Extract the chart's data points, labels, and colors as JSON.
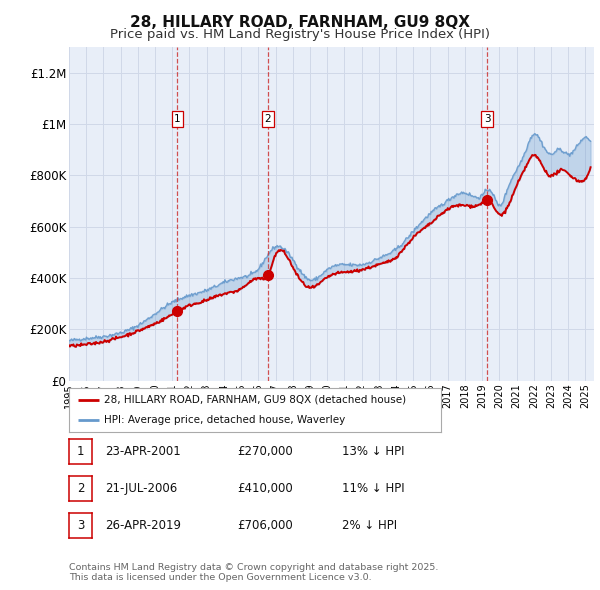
{
  "title": "28, HILLARY ROAD, FARNHAM, GU9 8QX",
  "subtitle": "Price paid vs. HM Land Registry's House Price Index (HPI)",
  "title_fontsize": 11,
  "subtitle_fontsize": 9.5,
  "background_color": "#ffffff",
  "plot_bg_color": "#e8eef8",
  "grid_color": "#d0d8e8",
  "ylim": [
    0,
    1300000
  ],
  "yticks": [
    0,
    200000,
    400000,
    600000,
    800000,
    1000000,
    1200000
  ],
  "ytick_labels": [
    "£0",
    "£200K",
    "£400K",
    "£600K",
    "£800K",
    "£1M",
    "£1.2M"
  ],
  "legend_entries": [
    "28, HILLARY ROAD, FARNHAM, GU9 8QX (detached house)",
    "HPI: Average price, detached house, Waverley"
  ],
  "legend_colors": [
    "#cc0000",
    "#6699cc"
  ],
  "transactions": [
    {
      "num": 1,
      "date": "23-APR-2001",
      "price": 270000,
      "hpi_diff": "13% ↓ HPI",
      "x_year": 2001.3
    },
    {
      "num": 2,
      "date": "21-JUL-2006",
      "price": 410000,
      "hpi_diff": "11% ↓ HPI",
      "x_year": 2006.55
    },
    {
      "num": 3,
      "date": "26-APR-2019",
      "price": 706000,
      "hpi_diff": "2% ↓ HPI",
      "x_year": 2019.3
    }
  ],
  "vline_color": "#cc3333",
  "vline_style": "--",
  "marker_color": "#cc0000",
  "marker_size": 7,
  "transaction_marker_values": [
    270000,
    410000,
    706000
  ],
  "table_rows": [
    {
      "num": "1",
      "date": "23-APR-2001",
      "price": "£270,000",
      "hpi": "13% ↓ HPI"
    },
    {
      "num": "2",
      "date": "21-JUL-2006",
      "price": "£410,000",
      "hpi": "11% ↓ HPI"
    },
    {
      "num": "3",
      "date": "26-APR-2019",
      "price": "£706,000",
      "hpi": "2% ↓ HPI"
    }
  ],
  "footnote_line1": "Contains HM Land Registry data © Crown copyright and database right 2025.",
  "footnote_line2": "This data is licensed under the Open Government Licence v3.0.",
  "xlim_start": 1995,
  "xlim_end": 2025.5,
  "hpi_key_x": [
    1995,
    1997,
    1999,
    2001,
    2002,
    2003,
    2004,
    2005,
    2006,
    2007,
    2007.5,
    2008,
    2009,
    2010,
    2011,
    2012,
    2013,
    2014,
    2015,
    2016,
    2017,
    2018,
    2019,
    2019.5,
    2020,
    2020.5,
    2021,
    2021.5,
    2022,
    2022.5,
    2023,
    2023.5,
    2024,
    2024.5,
    2025.3
  ],
  "hpi_key_y": [
    155000,
    172000,
    215000,
    305000,
    332000,
    352000,
    382000,
    402000,
    435000,
    522000,
    512000,
    472000,
    392000,
    432000,
    452000,
    452000,
    477000,
    512000,
    582000,
    652000,
    702000,
    732000,
    722000,
    742000,
    682000,
    752000,
    822000,
    892000,
    962000,
    922000,
    882000,
    902000,
    882000,
    912000,
    932000
  ],
  "price_key_x": [
    1995,
    1997,
    1999,
    2001,
    2001.3,
    2002,
    2003,
    2004,
    2005,
    2006,
    2006.55,
    2007,
    2008,
    2009,
    2010,
    2011,
    2012,
    2013,
    2014,
    2015,
    2016,
    2017,
    2018,
    2019,
    2019.3,
    2020,
    2021,
    2021.5,
    2022,
    2022.5,
    2023,
    2023.5,
    2024,
    2025.3
  ],
  "price_key_y": [
    135000,
    152000,
    193000,
    258000,
    270000,
    293000,
    313000,
    338000,
    358000,
    398000,
    410000,
    490000,
    442000,
    362000,
    402000,
    422000,
    432000,
    452000,
    482000,
    558000,
    612000,
    668000,
    683000,
    693000,
    706000,
    648000,
    758000,
    828000,
    878000,
    838000,
    798000,
    818000,
    808000,
    828000
  ]
}
